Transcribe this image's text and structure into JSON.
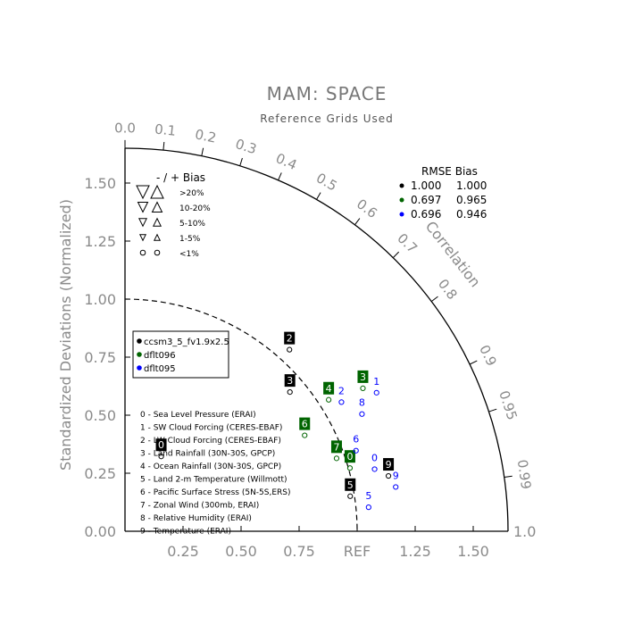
{
  "title": "MAM: SPACE",
  "subtitle": "Reference Grids Used",
  "colors": {
    "black": "#000000",
    "green": "#006400",
    "blue": "#0000ff"
  },
  "chart_data": {
    "type": "scatter",
    "projection": "taylor-diagram",
    "ylabel": "Standardized Deviations (Normalized)",
    "correlation_label": "Correlation",
    "x_ticks": [
      "0.25",
      "0.50",
      "0.75",
      "REF",
      "1.25",
      "1.50"
    ],
    "y_ticks": [
      "0.00",
      "0.25",
      "0.50",
      "0.75",
      "1.00",
      "1.25",
      "1.50"
    ],
    "correlation_ticks": [
      "0.0",
      "0.1",
      "0.2",
      "0.3",
      "0.4",
      "0.5",
      "0.6",
      "0.7",
      "0.8",
      "0.9",
      "0.95",
      "0.99",
      "1.0"
    ],
    "sd_range": [
      0,
      1.65
    ],
    "reference_arc": 1.0,
    "bias_legend": {
      "header": "- / +   Bias",
      "rows": [
        ">20%",
        "10-20%",
        "5-10%",
        "1-5%",
        "<1%"
      ]
    },
    "rmse_bias_table": {
      "header": "RMSE Bias",
      "rows": [
        {
          "rmse": "1.000",
          "bias": "1.000",
          "color": "#000000"
        },
        {
          "rmse": "0.697",
          "bias": "0.965",
          "color": "#006400"
        },
        {
          "rmse": "0.696",
          "bias": "0.946",
          "color": "#0000ff"
        }
      ]
    },
    "legend_position": "left",
    "series": [
      {
        "name": "ccsm3_5_fv1.9x2.5",
        "color": "#000000",
        "style": "box",
        "points": [
          {
            "id": "0",
            "sd": 0.4,
            "corr": 0.39
          },
          {
            "id": "2",
            "sd": 1.09,
            "corr": 0.65
          },
          {
            "id": "3",
            "sd": 0.96,
            "corr": 0.74
          },
          {
            "id": "5",
            "sd": 0.99,
            "corr": 0.98
          },
          {
            "id": "9",
            "sd": 1.17,
            "corr": 0.97
          }
        ]
      },
      {
        "name": "dflt096",
        "color": "#006400",
        "style": "box",
        "points": [
          {
            "id": "4",
            "sd": 1.07,
            "corr": 0.82
          },
          {
            "id": "6",
            "sd": 0.9,
            "corr": 0.86
          },
          {
            "id": "7",
            "sd": 0.98,
            "corr": 0.93
          },
          {
            "id": "0",
            "sd": 1.02,
            "corr": 0.95
          },
          {
            "id": "3",
            "sd": 1.22,
            "corr": 0.84
          }
        ]
      },
      {
        "name": "dflt095",
        "color": "#0000ff",
        "style": "text",
        "points": [
          {
            "id": "8",
            "sd": 1.16,
            "corr": 0.88
          },
          {
            "id": "1",
            "sd": 1.26,
            "corr": 0.86
          },
          {
            "id": "2",
            "sd": 1.11,
            "corr": 0.84
          },
          {
            "id": "6",
            "sd": 1.07,
            "corr": 0.93
          },
          {
            "id": "0",
            "sd": 1.12,
            "corr": 0.96
          },
          {
            "id": "5",
            "sd": 1.06,
            "corr": 0.99
          },
          {
            "id": "9",
            "sd": 1.19,
            "corr": 0.98
          }
        ]
      }
    ],
    "variables": [
      "0 - Sea Level Pressure (ERAI)",
      "1 - SW Cloud Forcing (CERES-EBAF)",
      "2 - LW Cloud Forcing (CERES-EBAF)",
      "3 - Land Rainfall (30N-30S, GPCP)",
      "4 - Ocean Rainfall (30N-30S, GPCP)",
      "5 - Land 2-m Temperature (Willmott)",
      "6 - Pacific Surface Stress (5N-5S,ERS)",
      "7 - Zonal Wind (300mb, ERAI)",
      "8 - Relative Humidity (ERAI)",
      "9 - Temperature (ERAI)"
    ]
  }
}
